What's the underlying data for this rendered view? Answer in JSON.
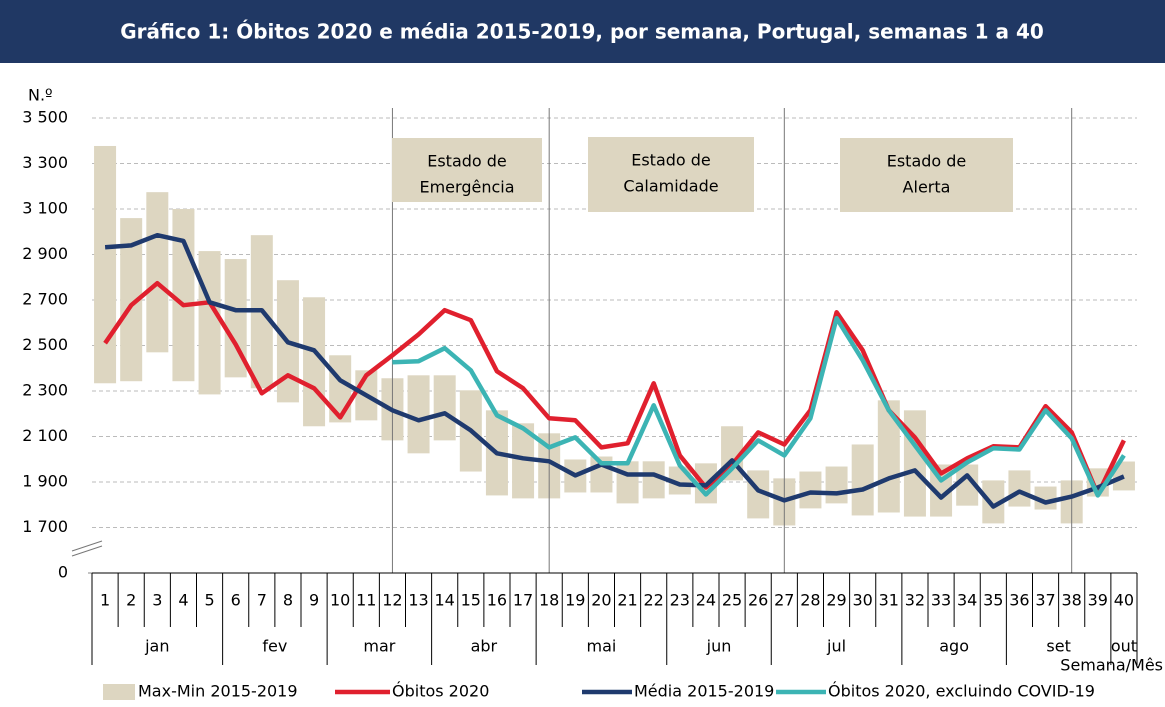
{
  "chart_data": {
    "type": "line",
    "title": "Gráfico 1: Óbitos 2020 e média 2015-2019, por semana, Portugal, semanas 1 a 40",
    "y_label": "N.º",
    "x_label": "Semana/Mês",
    "categories": [
      1,
      2,
      3,
      4,
      5,
      6,
      7,
      8,
      9,
      10,
      11,
      12,
      13,
      14,
      15,
      16,
      17,
      18,
      19,
      20,
      21,
      22,
      23,
      24,
      25,
      26,
      27,
      28,
      29,
      30,
      31,
      32,
      33,
      34,
      35,
      36,
      37,
      38,
      39,
      40
    ],
    "x_groups": [
      "jan",
      null,
      null,
      null,
      null,
      "fev",
      null,
      null,
      null,
      "mar",
      null,
      null,
      null,
      "abr",
      null,
      null,
      null,
      "mai",
      null,
      null,
      null,
      null,
      "jun",
      null,
      null,
      null,
      "jul",
      null,
      null,
      null,
      null,
      "ago",
      null,
      null,
      null,
      "set",
      null,
      null,
      null,
      "out"
    ],
    "ylim": [
      1500,
      3500
    ],
    "axis_break": true,
    "grid": true,
    "yticks": [
      {
        "value": 0,
        "label": "0"
      },
      {
        "value": 1700,
        "label": "1 700"
      },
      {
        "value": 1900,
        "label": "1 900"
      },
      {
        "value": 2100,
        "label": "2 100"
      },
      {
        "value": 2300,
        "label": "2 300"
      },
      {
        "value": 2500,
        "label": "2 500"
      },
      {
        "value": 2700,
        "label": "2 700"
      },
      {
        "value": 2900,
        "label": "2 900"
      },
      {
        "value": 3100,
        "label": "3 100"
      },
      {
        "value": 3300,
        "label": "3 300"
      },
      {
        "value": 3500,
        "label": "3 500"
      }
    ],
    "range": {
      "name": "Max-Min 2015-2019",
      "color": "#ddd6c1",
      "low": [
        2334,
        2343,
        2470,
        2343,
        2285,
        2360,
        2312,
        2250,
        2145,
        2162,
        2171,
        2083,
        2026,
        2083,
        1946,
        1841,
        1828,
        1828,
        1854,
        1854,
        1806,
        1828,
        1845,
        1806,
        1907,
        1740,
        1709,
        1784,
        1806,
        1753,
        1766,
        1748,
        1748,
        1796,
        1718,
        1792,
        1779,
        1718,
        1836,
        1863
      ],
      "high": [
        3377,
        3060,
        3174,
        3100,
        2915,
        2880,
        2985,
        2787,
        2712,
        2457,
        2391,
        2356,
        2369,
        2369,
        2303,
        2215,
        2158,
        2114,
        1999,
        2012,
        1991,
        1991,
        1968,
        1982,
        2145,
        1951,
        1916,
        1946,
        1968,
        2065,
        2259,
        2215,
        1977,
        1977,
        1907,
        1951,
        1880,
        1907,
        1960,
        1990
      ]
    },
    "series": [
      {
        "name": "Óbitos 2020",
        "color": "#e0202e",
        "values": [
          2510,
          2677,
          2774,
          2677,
          2690,
          2505,
          2290,
          2369,
          2312,
          2184,
          2369,
          2457,
          2549,
          2655,
          2611,
          2387,
          2312,
          2180,
          2171,
          2052,
          2070,
          2334,
          2017,
          1876,
          1977,
          2118,
          2065,
          2215,
          2646,
          2479,
          2215,
          2096,
          1938,
          2004,
          2057,
          2052,
          2233,
          2118,
          1845,
          2083
        ]
      },
      {
        "name": "Média 2015-2019",
        "color": "#1f3a6e",
        "values": [
          2932,
          2940,
          2985,
          2960,
          2690,
          2655,
          2655,
          2514,
          2479,
          2347,
          2281,
          2215,
          2171,
          2202,
          2127,
          2026,
          2004,
          1991,
          1929,
          1977,
          1933,
          1933,
          1889,
          1885,
          1995,
          1863,
          1819,
          1854,
          1850,
          1867,
          1916,
          1951,
          1832,
          1929,
          1792,
          1858,
          1810,
          1836,
          1876,
          1924
        ]
      },
      {
        "name": "Óbitos 2020, excluindo COVID-19",
        "color": "#3cb4b4",
        "values": [
          null,
          null,
          null,
          null,
          null,
          null,
          null,
          null,
          null,
          null,
          null,
          2426,
          2431,
          2488,
          2391,
          2193,
          2136,
          2052,
          2096,
          1982,
          1982,
          2237,
          1973,
          1845,
          1960,
          2083,
          2017,
          2180,
          2620,
          2435,
          2215,
          2061,
          1907,
          1986,
          2048,
          2043,
          2215,
          2092,
          1841,
          2017
        ]
      }
    ],
    "annotations": [
      {
        "x": 12,
        "label": [
          "Estado de",
          "Emergência"
        ]
      },
      {
        "x": 18,
        "label": [
          "Estado de",
          "Calamidade"
        ]
      },
      {
        "x": 27,
        "label": [
          "Estado de",
          "Alerta"
        ]
      },
      {
        "x": 38
      }
    ]
  }
}
